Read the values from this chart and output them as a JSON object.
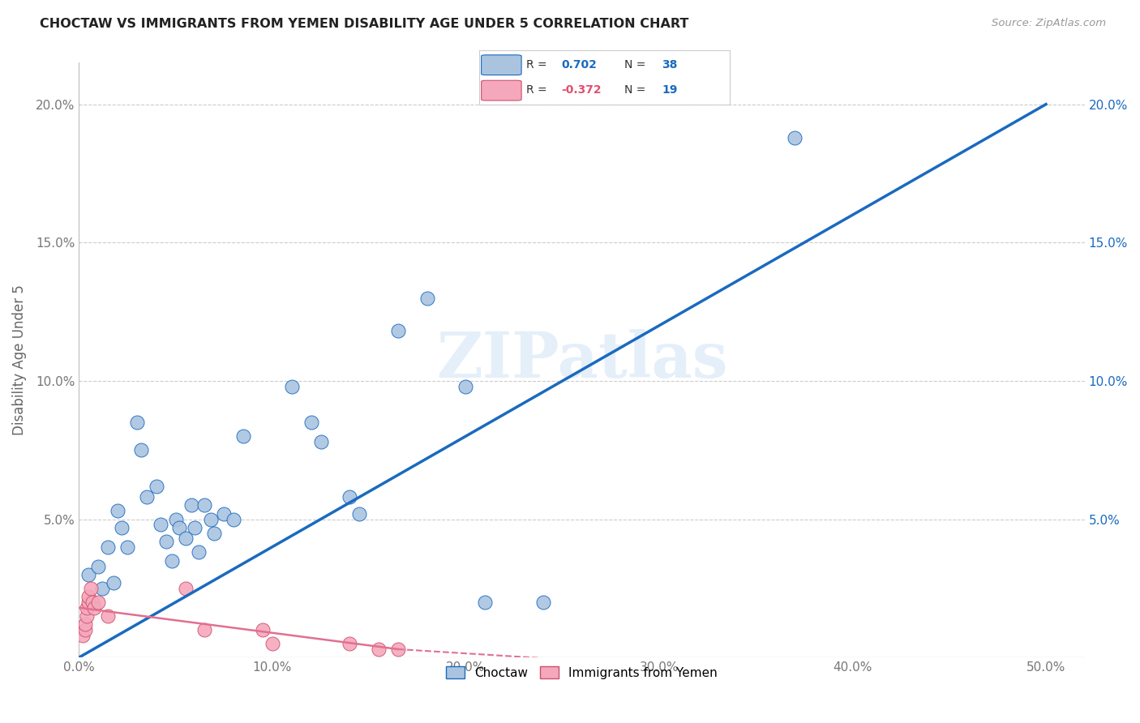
{
  "title": "CHOCTAW VS IMMIGRANTS FROM YEMEN DISABILITY AGE UNDER 5 CORRELATION CHART",
  "source": "Source: ZipAtlas.com",
  "ylabel_label": "Disability Age Under 5",
  "legend_label1": "Choctaw",
  "legend_label2": "Immigrants from Yemen",
  "R1": 0.702,
  "N1": 38,
  "R2": -0.372,
  "N2": 19,
  "color_blue": "#aac4e0",
  "color_pink": "#f5a8bb",
  "line_blue": "#1a6abf",
  "line_pink": "#e07090",
  "xlim": [
    0.0,
    0.52
  ],
  "ylim": [
    0.0,
    0.215
  ],
  "xticks": [
    0.0,
    0.1,
    0.2,
    0.3,
    0.4,
    0.5
  ],
  "yticks": [
    0.0,
    0.05,
    0.1,
    0.15,
    0.2
  ],
  "xtick_labels": [
    "0.0%",
    "10.0%",
    "20.0%",
    "30.0%",
    "40.0%",
    "50.0%"
  ],
  "ytick_labels_left": [
    "",
    "5.0%",
    "10.0%",
    "15.0%",
    "20.0%"
  ],
  "ytick_labels_right": [
    "",
    "5.0%",
    "10.0%",
    "15.0%",
    "20.0%"
  ],
  "blue_points": [
    [
      0.005,
      0.03
    ],
    [
      0.01,
      0.033
    ],
    [
      0.012,
      0.025
    ],
    [
      0.015,
      0.04
    ],
    [
      0.018,
      0.027
    ],
    [
      0.02,
      0.053
    ],
    [
      0.022,
      0.047
    ],
    [
      0.025,
      0.04
    ],
    [
      0.03,
      0.085
    ],
    [
      0.032,
      0.075
    ],
    [
      0.035,
      0.058
    ],
    [
      0.04,
      0.062
    ],
    [
      0.042,
      0.048
    ],
    [
      0.045,
      0.042
    ],
    [
      0.048,
      0.035
    ],
    [
      0.05,
      0.05
    ],
    [
      0.052,
      0.047
    ],
    [
      0.055,
      0.043
    ],
    [
      0.058,
      0.055
    ],
    [
      0.06,
      0.047
    ],
    [
      0.062,
      0.038
    ],
    [
      0.065,
      0.055
    ],
    [
      0.068,
      0.05
    ],
    [
      0.07,
      0.045
    ],
    [
      0.075,
      0.052
    ],
    [
      0.08,
      0.05
    ],
    [
      0.085,
      0.08
    ],
    [
      0.11,
      0.098
    ],
    [
      0.12,
      0.085
    ],
    [
      0.125,
      0.078
    ],
    [
      0.14,
      0.058
    ],
    [
      0.145,
      0.052
    ],
    [
      0.165,
      0.118
    ],
    [
      0.18,
      0.13
    ],
    [
      0.2,
      0.098
    ],
    [
      0.21,
      0.02
    ],
    [
      0.24,
      0.02
    ],
    [
      0.37,
      0.188
    ]
  ],
  "pink_points": [
    [
      0.002,
      0.008
    ],
    [
      0.003,
      0.01
    ],
    [
      0.003,
      0.012
    ],
    [
      0.004,
      0.015
    ],
    [
      0.004,
      0.018
    ],
    [
      0.005,
      0.02
    ],
    [
      0.005,
      0.022
    ],
    [
      0.006,
      0.025
    ],
    [
      0.007,
      0.02
    ],
    [
      0.008,
      0.018
    ],
    [
      0.01,
      0.02
    ],
    [
      0.015,
      0.015
    ],
    [
      0.055,
      0.025
    ],
    [
      0.065,
      0.01
    ],
    [
      0.095,
      0.01
    ],
    [
      0.1,
      0.005
    ],
    [
      0.14,
      0.005
    ],
    [
      0.155,
      0.003
    ],
    [
      0.165,
      0.003
    ]
  ],
  "blue_line": [
    [
      0.0,
      0.0
    ],
    [
      0.5,
      0.2
    ]
  ],
  "pink_line_solid": [
    [
      0.0,
      0.018
    ],
    [
      0.165,
      0.003
    ]
  ],
  "pink_line_dash": [
    [
      0.165,
      0.003
    ],
    [
      0.28,
      -0.002
    ]
  ],
  "watermark": "ZIPatlas",
  "background_color": "#ffffff",
  "grid_color": "#cccccc"
}
